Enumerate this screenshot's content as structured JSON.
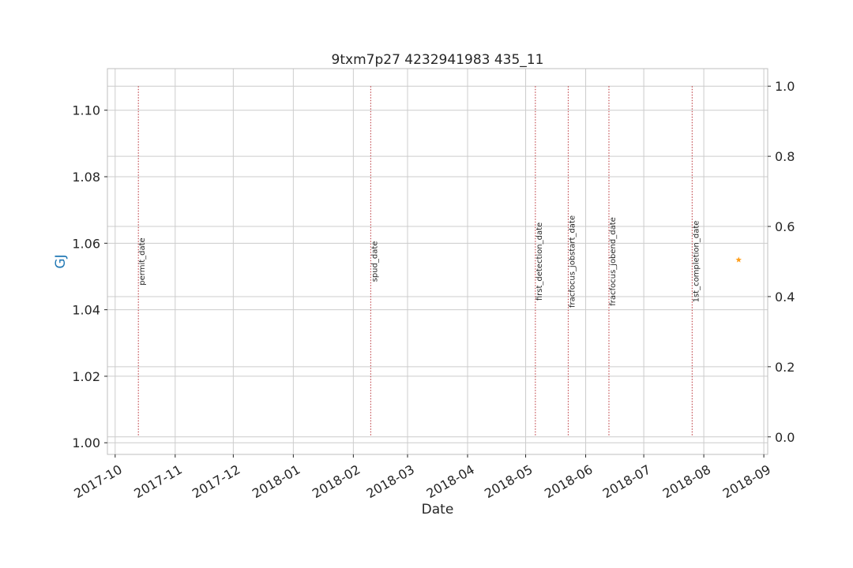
{
  "chart_data": {
    "type": "line",
    "title": "9txm7p27 4232941983 435_11",
    "xlabel": "Date",
    "ylabel": "GJ",
    "xlim": [
      "2017-09-27",
      "2018-09-03"
    ],
    "ylim": [
      0.9965,
      1.1125
    ],
    "y2lim": [
      -0.05,
      1.05
    ],
    "x_ticks": [
      "2017-10-01",
      "2017-11-01",
      "2017-12-01",
      "2018-01-01",
      "2018-02-01",
      "2018-03-01",
      "2018-04-01",
      "2018-05-01",
      "2018-06-01",
      "2018-07-01",
      "2018-08-01",
      "2018-09-01"
    ],
    "x_tick_labels": [
      "2017-10",
      "2017-11",
      "2017-12",
      "2018-01",
      "2018-02",
      "2018-03",
      "2018-04",
      "2018-05",
      "2018-06",
      "2018-07",
      "2018-08",
      "2018-09"
    ],
    "y_ticks": [
      1.0,
      1.02,
      1.04,
      1.06,
      1.08,
      1.1
    ],
    "y_tick_labels": [
      "1.00",
      "1.02",
      "1.04",
      "1.06",
      "1.08",
      "1.10"
    ],
    "y2_ticks": [
      0.0,
      0.2,
      0.4,
      0.6,
      0.8,
      1.0
    ],
    "y2_tick_labels": [
      "0.0",
      "0.2",
      "0.4",
      "0.6",
      "0.8",
      "1.0"
    ],
    "grid": true,
    "events": [
      {
        "label": "permit_date",
        "date": "2017-10-13"
      },
      {
        "label": "spud_date",
        "date": "2018-02-10"
      },
      {
        "label": "first_detection_date",
        "date": "2018-05-06"
      },
      {
        "label": "fracfocus_jobstart_date",
        "date": "2018-05-23"
      },
      {
        "label": "fracfocus_jobend_date",
        "date": "2018-06-13"
      },
      {
        "label": "1st_completion_date",
        "date": "2018-07-26"
      }
    ],
    "event_color": "#c44e52",
    "series": [
      {
        "marker": "star",
        "color": "#ff9f1c",
        "points": [
          {
            "x": "2018-08-19",
            "y": 1.055
          }
        ]
      }
    ]
  }
}
